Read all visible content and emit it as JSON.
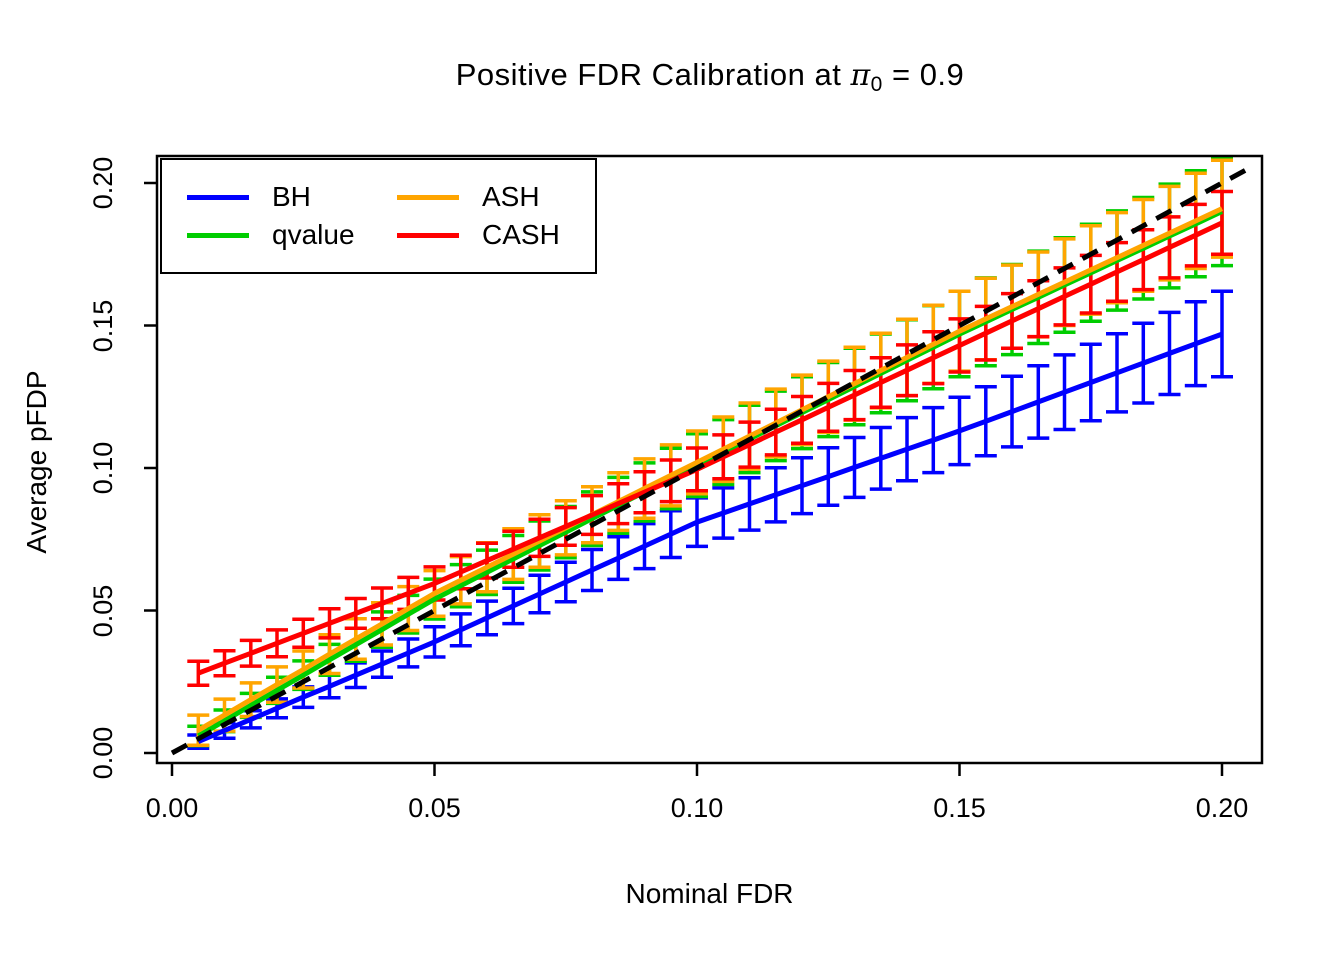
{
  "chart_data": {
    "type": "line",
    "title": {
      "text_before_pi": "Positive FDR Calibration at ",
      "pi_symbol": "π",
      "pi_subscript": "0",
      "text_after_pi": " = 0.9"
    },
    "xlabel": "Nominal FDR",
    "ylabel": "Average pFDP",
    "xlim": [
      0,
      0.2
    ],
    "ylim": [
      0,
      0.2
    ],
    "grid": false,
    "axis_box": true,
    "x_ticks": [
      "0.00",
      "0.05",
      "0.10",
      "0.15",
      "0.20"
    ],
    "x_tick_values": [
      0,
      0.05,
      0.1,
      0.15,
      0.2
    ],
    "y_ticks": [
      "0.00",
      "0.05",
      "0.10",
      "0.15",
      "0.20"
    ],
    "y_tick_values": [
      0,
      0.05,
      0.1,
      0.15,
      0.2
    ],
    "reference_line": {
      "name": "y = x diagonal",
      "color": "#000000",
      "style": "dashed",
      "from": [
        0,
        0
      ],
      "to": [
        0.206,
        0.206
      ]
    },
    "x": [
      0.005,
      0.01,
      0.015,
      0.02,
      0.025,
      0.03,
      0.035,
      0.04,
      0.045,
      0.05,
      0.055,
      0.06,
      0.065,
      0.07,
      0.075,
      0.08,
      0.085,
      0.09,
      0.095,
      0.1,
      0.105,
      0.11,
      0.115,
      0.12,
      0.125,
      0.13,
      0.135,
      0.14,
      0.145,
      0.15,
      0.155,
      0.16,
      0.165,
      0.17,
      0.175,
      0.18,
      0.185,
      0.19,
      0.195,
      0.2
    ],
    "legend": {
      "position": "topleft",
      "columns": 2
    },
    "series": [
      {
        "name": "BH",
        "color": "#0000ff",
        "values": [
          0.004,
          0.0079,
          0.0118,
          0.0157,
          0.0196,
          0.0234,
          0.0273,
          0.0312,
          0.0351,
          0.039,
          0.0432,
          0.0474,
          0.0516,
          0.0558,
          0.06,
          0.0642,
          0.0684,
          0.0726,
          0.0768,
          0.081,
          0.0842,
          0.0874,
          0.0906,
          0.0938,
          0.097,
          0.1002,
          0.1034,
          0.1066,
          0.1098,
          0.113,
          0.1164,
          0.1198,
          0.1232,
          0.1266,
          0.13,
          0.1334,
          0.1368,
          0.1402,
          0.1436,
          0.147
        ],
        "err": [
          0.0023,
          0.0027,
          0.003,
          0.0033,
          0.0036,
          0.004,
          0.0043,
          0.0046,
          0.0049,
          0.0053,
          0.0056,
          0.0059,
          0.0062,
          0.0066,
          0.0069,
          0.0072,
          0.0075,
          0.0079,
          0.0082,
          0.0085,
          0.0088,
          0.0092,
          0.0095,
          0.0098,
          0.0101,
          0.0105,
          0.0108,
          0.0111,
          0.0114,
          0.0118,
          0.0121,
          0.0124,
          0.0127,
          0.0131,
          0.0134,
          0.0137,
          0.014,
          0.0144,
          0.0147,
          0.015
        ]
      },
      {
        "name": "qvalue",
        "color": "#00cd00",
        "values": [
          0.006,
          0.0113,
          0.0167,
          0.022,
          0.0273,
          0.0327,
          0.038,
          0.0433,
          0.0487,
          0.054,
          0.0587,
          0.0634,
          0.0681,
          0.0728,
          0.0775,
          0.0822,
          0.0869,
          0.0916,
          0.0963,
          0.101,
          0.1056,
          0.1102,
          0.1148,
          0.1194,
          0.124,
          0.1286,
          0.1332,
          0.1378,
          0.1424,
          0.147,
          0.1513,
          0.1556,
          0.1599,
          0.1642,
          0.1685,
          0.1728,
          0.1771,
          0.1814,
          0.1857,
          0.19
        ],
        "err": [
          0.0034,
          0.0038,
          0.0042,
          0.0046,
          0.005,
          0.0054,
          0.0058,
          0.0062,
          0.0066,
          0.007,
          0.0074,
          0.0078,
          0.0082,
          0.0086,
          0.009,
          0.0094,
          0.0098,
          0.0102,
          0.0106,
          0.011,
          0.0114,
          0.0118,
          0.0122,
          0.0126,
          0.013,
          0.0134,
          0.0138,
          0.0142,
          0.0146,
          0.015,
          0.0154,
          0.0158,
          0.0162,
          0.0166,
          0.017,
          0.0174,
          0.0178,
          0.0182,
          0.0186,
          0.019
        ]
      },
      {
        "name": "ASH",
        "color": "#ffa500",
        "values": [
          0.008,
          0.0133,
          0.0187,
          0.024,
          0.0293,
          0.0347,
          0.04,
          0.0453,
          0.0507,
          0.056,
          0.0606,
          0.0652,
          0.0698,
          0.0744,
          0.079,
          0.0836,
          0.0882,
          0.0928,
          0.0974,
          0.102,
          0.1066,
          0.1112,
          0.1158,
          0.1204,
          0.125,
          0.1296,
          0.1342,
          0.1388,
          0.1434,
          0.148,
          0.1523,
          0.1566,
          0.1609,
          0.1652,
          0.1695,
          0.1738,
          0.1781,
          0.1824,
          0.1867,
          0.191
        ],
        "err": [
          0.0053,
          0.0056,
          0.0059,
          0.0062,
          0.0065,
          0.0068,
          0.0071,
          0.0074,
          0.0077,
          0.008,
          0.0083,
          0.0086,
          0.0089,
          0.0092,
          0.0095,
          0.0098,
          0.0101,
          0.0104,
          0.0107,
          0.011,
          0.0113,
          0.0116,
          0.0119,
          0.0122,
          0.0125,
          0.0128,
          0.0131,
          0.0134,
          0.0137,
          0.014,
          0.0143,
          0.0146,
          0.0149,
          0.0152,
          0.0155,
          0.0158,
          0.0161,
          0.0164,
          0.0167,
          0.017
        ]
      },
      {
        "name": "CASH",
        "color": "#ff0000",
        "values": [
          0.028,
          0.0315,
          0.035,
          0.0385,
          0.042,
          0.0455,
          0.049,
          0.0525,
          0.056,
          0.0595,
          0.0635,
          0.0675,
          0.0715,
          0.0755,
          0.0795,
          0.0835,
          0.0875,
          0.0915,
          0.0955,
          0.0995,
          0.1039,
          0.1082,
          0.1126,
          0.1169,
          0.1213,
          0.1256,
          0.13,
          0.1343,
          0.1387,
          0.143,
          0.1473,
          0.1516,
          0.1559,
          0.1602,
          0.1645,
          0.1688,
          0.1731,
          0.1774,
          0.1817,
          0.186
        ],
        "err": [
          0.0042,
          0.0044,
          0.0045,
          0.0047,
          0.0049,
          0.0051,
          0.0052,
          0.0054,
          0.0056,
          0.0058,
          0.0059,
          0.0061,
          0.0063,
          0.0065,
          0.0066,
          0.0068,
          0.007,
          0.0072,
          0.0073,
          0.0075,
          0.0077,
          0.0079,
          0.008,
          0.0082,
          0.0084,
          0.0086,
          0.0087,
          0.0089,
          0.0091,
          0.0093,
          0.0094,
          0.0096,
          0.0098,
          0.01,
          0.0101,
          0.0103,
          0.0105,
          0.0107,
          0.0108,
          0.011
        ]
      }
    ]
  }
}
